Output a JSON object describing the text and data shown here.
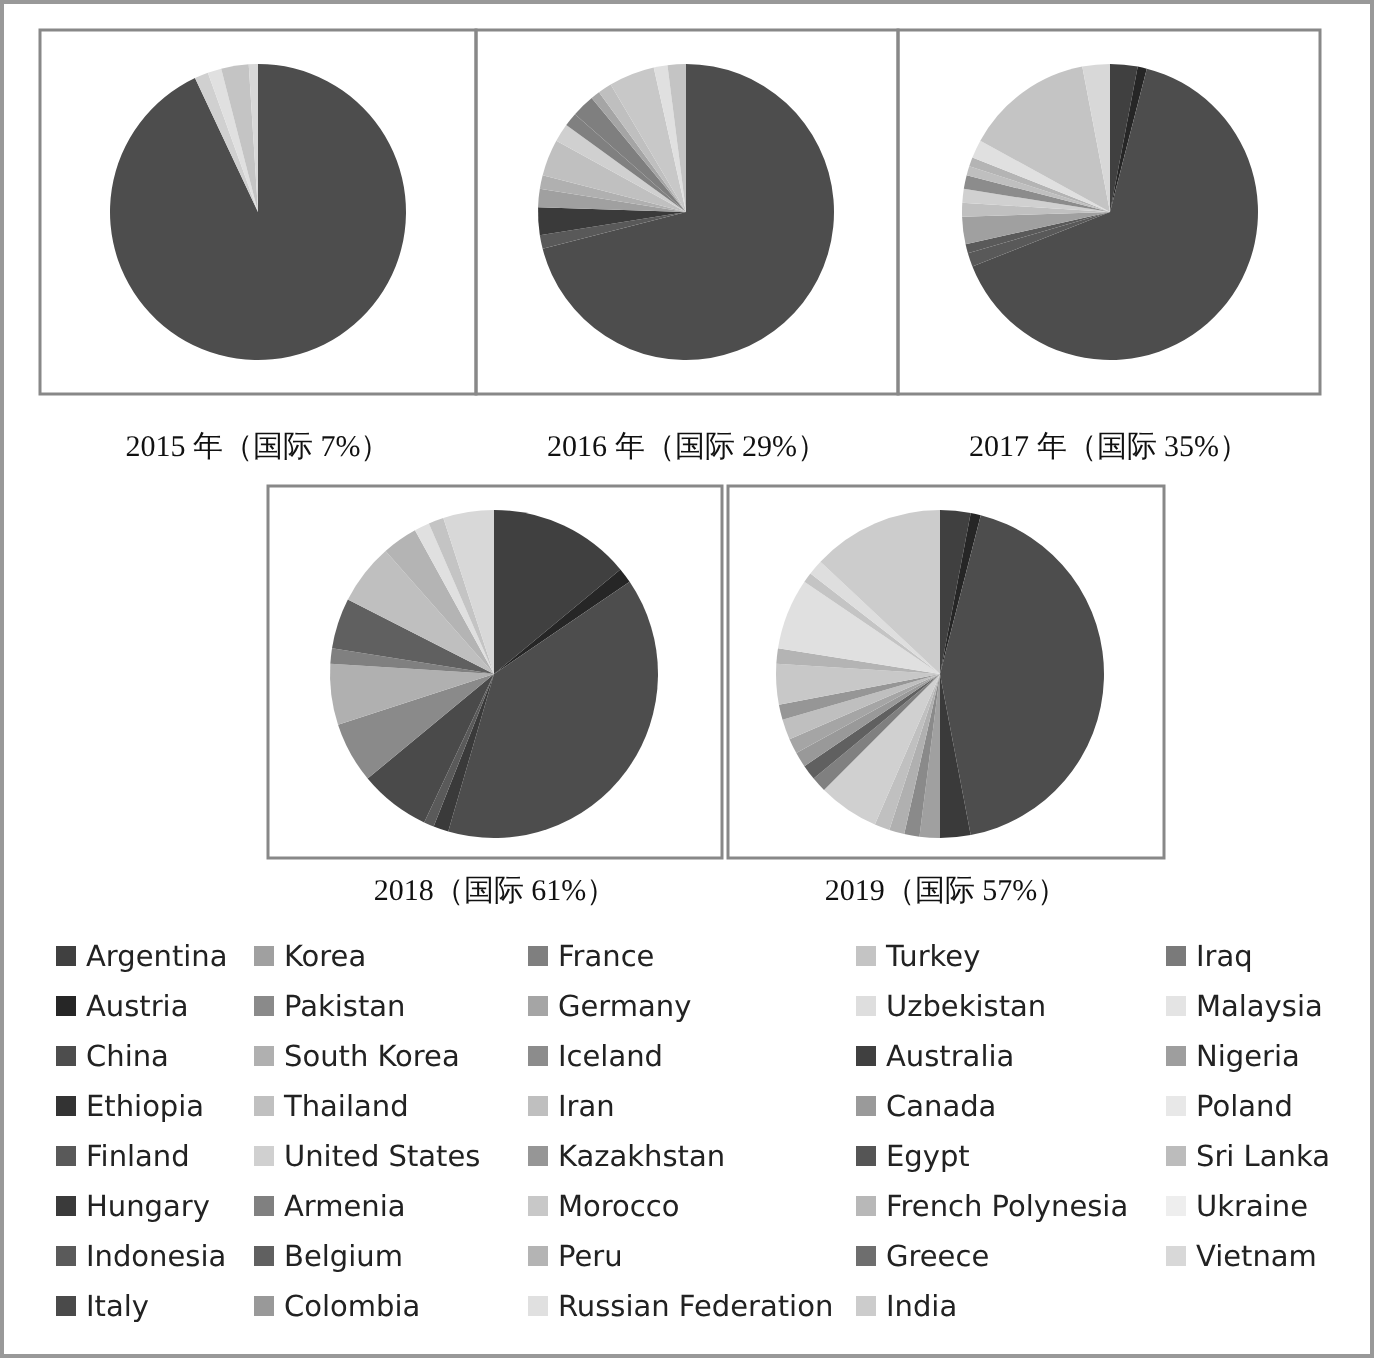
{
  "chart_data": [
    {
      "type": "pie",
      "title": "2015 年（国际 7%）",
      "legend": "bottom",
      "categories": [
        "Argentina",
        "Austria",
        "China",
        "Ethiopia",
        "Finland",
        "Hungary",
        "Indonesia",
        "Italy",
        "Korea",
        "Pakistan",
        "South Korea",
        "Thailand",
        "United States",
        "Armenia",
        "Belgium",
        "Colombia",
        "France",
        "Germany",
        "Iceland",
        "Iran",
        "Kazakhstan",
        "Morocco",
        "Peru",
        "Russian Federation",
        "Turkey",
        "Uzbekistan",
        "Australia",
        "Canada",
        "Egypt",
        "French Polynesia",
        "Greece",
        "India",
        "Iraq",
        "Malaysia",
        "Nigeria",
        "Poland",
        "Sri Lanka",
        "Ukraine",
        "Vietnam"
      ],
      "values": [
        0,
        0,
        93,
        0,
        0,
        0,
        0,
        0,
        0,
        0,
        0,
        0,
        1.5,
        0,
        0,
        0,
        0,
        0,
        0,
        0,
        0,
        0,
        0,
        1.5,
        3,
        0,
        0,
        0,
        0,
        0,
        0,
        0,
        0,
        0,
        0,
        0,
        0,
        0,
        1
      ],
      "colors": [
        "#404040",
        "#262626",
        "#4d4d4d",
        "#333333",
        "#595959",
        "#3a3a3a",
        "#5a5a5a",
        "#4a4a4a",
        "#a0a0a0",
        "#8a8a8a",
        "#b0b0b0",
        "#c0c0c0",
        "#d0d0d0",
        "#808080",
        "#606060",
        "#999999",
        "#7f7f7f",
        "#a5a5a5",
        "#8c8c8c",
        "#bfbfbf",
        "#969696",
        "#c8c8c8",
        "#b4b4b4",
        "#e0e0e0",
        "#c4c4c4",
        "#dedede",
        "#404040",
        "#9a9a9a",
        "#555555",
        "#b8b8b8",
        "#6e6e6e",
        "#cccccc",
        "#7a7a7a",
        "#e4e4e4",
        "#9e9e9e",
        "#e8e8e8",
        "#bcbcbc",
        "#eeeeee",
        "#d8d8d8"
      ]
    },
    {
      "type": "pie",
      "title": "2016 年（国际 29%）",
      "categories": [
        null,
        null,
        null,
        null,
        null,
        null,
        null,
        null,
        null,
        null,
        null,
        null,
        null,
        null,
        null,
        null,
        null,
        null,
        null,
        null,
        null,
        null,
        null,
        null,
        null,
        null,
        null,
        null,
        null,
        null,
        null,
        null,
        null,
        null,
        null,
        null,
        null,
        null,
        null
      ],
      "values": [
        0,
        0,
        71,
        0,
        1.5,
        3,
        0,
        0,
        2,
        0,
        1.5,
        4,
        2,
        1.5,
        0,
        0,
        2.5,
        1,
        0,
        1.5,
        0,
        5,
        0,
        1.5,
        2,
        0,
        0,
        0,
        0,
        0,
        0,
        0,
        0,
        0,
        0,
        0,
        0,
        0,
        0
      ],
      "colors": [
        "#404040",
        "#262626",
        "#4d4d4d",
        "#333333",
        "#595959",
        "#3a3a3a",
        "#5a5a5a",
        "#4a4a4a",
        "#a0a0a0",
        "#8a8a8a",
        "#b0b0b0",
        "#c0c0c0",
        "#d0d0d0",
        "#808080",
        "#606060",
        "#999999",
        "#7f7f7f",
        "#a5a5a5",
        "#8c8c8c",
        "#bfbfbf",
        "#969696",
        "#c8c8c8",
        "#b4b4b4",
        "#e0e0e0",
        "#c4c4c4",
        "#dedede",
        "#404040",
        "#9a9a9a",
        "#555555",
        "#b8b8b8",
        "#6e6e6e",
        "#cccccc",
        "#7a7a7a",
        "#e4e4e4",
        "#9e9e9e",
        "#e8e8e8",
        "#bcbcbc",
        "#eeeeee",
        "#d8d8d8"
      ]
    },
    {
      "type": "pie",
      "title": "2017 年（国际 35%）",
      "categories": [
        null,
        null,
        null,
        null,
        null,
        null,
        null,
        null,
        null,
        null,
        null,
        null,
        null,
        null,
        null,
        null,
        null,
        null,
        null,
        null,
        null,
        null,
        null,
        null,
        null,
        null,
        null,
        null,
        null,
        null,
        null,
        null,
        null,
        null,
        null,
        null,
        null,
        null,
        null
      ],
      "values": [
        3,
        1,
        65,
        0,
        1.5,
        0,
        1,
        0,
        3,
        0,
        0,
        1.5,
        1.5,
        0,
        0,
        0,
        0,
        0,
        1.5,
        1,
        0,
        0,
        1,
        2,
        14,
        0,
        0,
        0,
        0,
        0,
        0,
        0,
        0,
        0,
        0,
        0,
        0,
        0,
        3
      ],
      "colors": [
        "#404040",
        "#262626",
        "#4d4d4d",
        "#333333",
        "#595959",
        "#3a3a3a",
        "#5a5a5a",
        "#4a4a4a",
        "#a0a0a0",
        "#8a8a8a",
        "#b0b0b0",
        "#c0c0c0",
        "#d0d0d0",
        "#808080",
        "#606060",
        "#999999",
        "#7f7f7f",
        "#a5a5a5",
        "#8c8c8c",
        "#bfbfbf",
        "#969696",
        "#c8c8c8",
        "#b4b4b4",
        "#e0e0e0",
        "#c4c4c4",
        "#dedede",
        "#404040",
        "#9a9a9a",
        "#555555",
        "#b8b8b8",
        "#6e6e6e",
        "#cccccc",
        "#7a7a7a",
        "#e4e4e4",
        "#9e9e9e",
        "#e8e8e8",
        "#bcbcbc",
        "#eeeeee",
        "#d8d8d8"
      ]
    },
    {
      "type": "pie",
      "title": "2018（国际 61%）",
      "categories": [
        null,
        null,
        null,
        null,
        null,
        null,
        null,
        null,
        null,
        null,
        null,
        null,
        null,
        null,
        null,
        null,
        null,
        null,
        null,
        null,
        null,
        null,
        null,
        null,
        null,
        null,
        null,
        null,
        null,
        null,
        null,
        null,
        null,
        null,
        null,
        null,
        null,
        null,
        null
      ],
      "values": [
        14,
        1.5,
        39,
        0,
        0,
        1.5,
        1,
        7,
        0,
        6,
        6,
        0,
        0,
        1.5,
        5,
        0,
        0,
        0,
        0,
        6,
        0,
        0,
        3.5,
        1.5,
        1.5,
        0,
        0,
        0,
        0,
        0,
        0,
        0,
        0,
        0,
        0,
        0,
        0,
        0,
        5
      ],
      "colors": [
        "#404040",
        "#262626",
        "#4d4d4d",
        "#333333",
        "#595959",
        "#3a3a3a",
        "#5a5a5a",
        "#4a4a4a",
        "#a0a0a0",
        "#8a8a8a",
        "#b0b0b0",
        "#c0c0c0",
        "#d0d0d0",
        "#808080",
        "#606060",
        "#999999",
        "#7f7f7f",
        "#a5a5a5",
        "#8c8c8c",
        "#bfbfbf",
        "#969696",
        "#c8c8c8",
        "#b4b4b4",
        "#e0e0e0",
        "#c4c4c4",
        "#dedede",
        "#404040",
        "#9a9a9a",
        "#555555",
        "#b8b8b8",
        "#6e6e6e",
        "#cccccc",
        "#7a7a7a",
        "#e4e4e4",
        "#9e9e9e",
        "#e8e8e8",
        "#bcbcbc",
        "#eeeeee",
        "#d8d8d8"
      ]
    },
    {
      "type": "pie",
      "title": "2019（国际 57%）",
      "categories": [
        null,
        null,
        null,
        null,
        null,
        null,
        null,
        null,
        null,
        null,
        null,
        null,
        null,
        null,
        null,
        null,
        null,
        null,
        null,
        null,
        null,
        null,
        null,
        null,
        null,
        null,
        null,
        null,
        null,
        null,
        null,
        null,
        null,
        null,
        null,
        null,
        null,
        null,
        null
      ],
      "values": [
        3,
        1,
        43,
        0,
        0,
        3,
        0,
        0,
        2,
        1.5,
        1.5,
        1.5,
        6,
        1.5,
        1.5,
        1.5,
        0,
        1.5,
        0,
        2,
        1.5,
        4,
        1.5,
        7,
        1,
        1.5,
        0,
        0,
        0,
        0,
        0,
        13,
        0,
        0,
        0,
        0,
        0,
        0,
        0
      ],
      "colors": [
        "#404040",
        "#262626",
        "#4d4d4d",
        "#333333",
        "#595959",
        "#3a3a3a",
        "#5a5a5a",
        "#4a4a4a",
        "#a0a0a0",
        "#8a8a8a",
        "#b0b0b0",
        "#c0c0c0",
        "#d0d0d0",
        "#808080",
        "#606060",
        "#999999",
        "#7f7f7f",
        "#a5a5a5",
        "#8c8c8c",
        "#bfbfbf",
        "#969696",
        "#c8c8c8",
        "#b4b4b4",
        "#e0e0e0",
        "#c4c4c4",
        "#dedede",
        "#404040",
        "#9a9a9a",
        "#555555",
        "#b8b8b8",
        "#6e6e6e",
        "#cccccc",
        "#7a7a7a",
        "#e4e4e4",
        "#9e9e9e",
        "#e8e8e8",
        "#bcbcbc",
        "#eeeeee",
        "#d8d8d8"
      ]
    }
  ]
}
